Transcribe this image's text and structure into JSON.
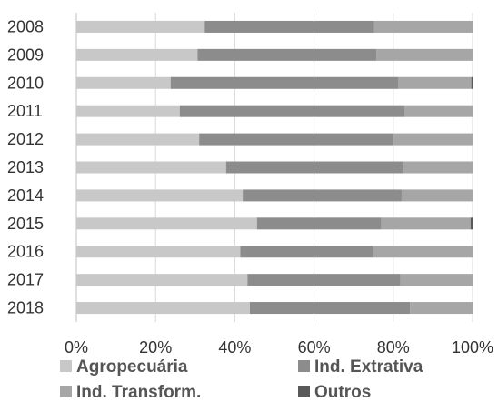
{
  "chart_data": {
    "type": "bar",
    "orientation": "horizontal",
    "stacking": "percent",
    "categories": [
      "2008",
      "2009",
      "2010",
      "2011",
      "2012",
      "2013",
      "2014",
      "2015",
      "2016",
      "2017",
      "2018"
    ],
    "series": [
      {
        "name": "Agropecuária",
        "color": "#c8c8c8",
        "values": [
          32.4,
          30.6,
          23.8,
          26.1,
          31.0,
          37.8,
          42.0,
          45.6,
          41.4,
          43.2,
          43.8
        ]
      },
      {
        "name": "Ind. Extrativa",
        "color": "#8c8c8c",
        "values": [
          42.8,
          45.1,
          57.4,
          56.7,
          49.1,
          44.7,
          40.1,
          31.4,
          33.4,
          38.6,
          40.4
        ]
      },
      {
        "name": "Ind. Transform.",
        "color": "#a6a6a6",
        "values": [
          24.8,
          24.3,
          18.5,
          17.2,
          19.9,
          17.5,
          17.9,
          22.5,
          25.2,
          18.2,
          15.8
        ]
      },
      {
        "name": "Outros",
        "color": "#595959",
        "values": [
          0.0,
          0.0,
          0.3,
          0.0,
          0.0,
          0.0,
          0.0,
          0.5,
          0.0,
          0.0,
          0.0
        ]
      }
    ],
    "x_ticks": [
      "0%",
      "20%",
      "40%",
      "60%",
      "80%",
      "100%"
    ],
    "xlim": [
      0,
      100
    ],
    "grid": true,
    "legend_position": "bottom"
  }
}
